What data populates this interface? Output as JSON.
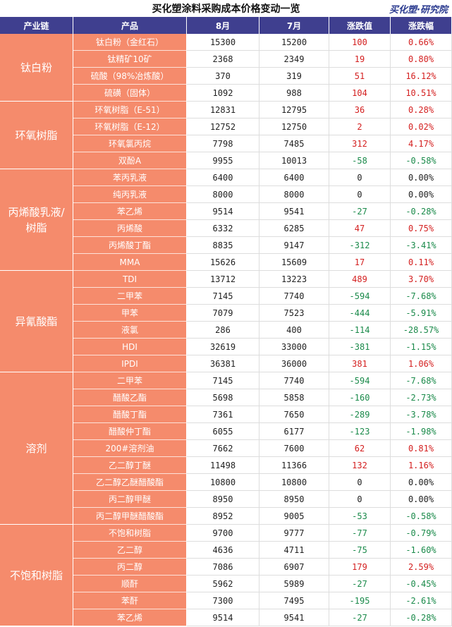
{
  "title": "买化塑涂料采购成本价格变动一览",
  "logo": "买化塑·研究院",
  "table": {
    "header": [
      "产业链",
      "产品",
      "8月",
      "7月",
      "涨跌值",
      "涨跌幅"
    ],
    "groups": [
      {
        "name": "钛白粉",
        "rows": [
          [
            "钛白粉（金红石）",
            "15300",
            "15200",
            "100",
            "0.66%"
          ],
          [
            "钛精矿10矿",
            "2368",
            "2349",
            "19",
            "0.80%"
          ],
          [
            "硫酸（98%冶炼酸）",
            "370",
            "319",
            "51",
            "16.12%"
          ],
          [
            "硫磺（固体）",
            "1092",
            "988",
            "104",
            "10.51%"
          ]
        ]
      },
      {
        "name": "环氧树脂",
        "rows": [
          [
            "环氧树脂（E-51）",
            "12831",
            "12795",
            "36",
            "0.28%"
          ],
          [
            "环氧树脂（E-12）",
            "12752",
            "12750",
            "2",
            "0.02%"
          ],
          [
            "环氧氯丙烷",
            "7798",
            "7485",
            "312",
            "4.17%"
          ],
          [
            "双酚A",
            "9955",
            "10013",
            "-58",
            "-0.58%"
          ]
        ]
      },
      {
        "name": "丙烯酸乳液/树脂",
        "rows": [
          [
            "苯丙乳液",
            "6400",
            "6400",
            "0",
            "0.00%"
          ],
          [
            "纯丙乳液",
            "8000",
            "8000",
            "0",
            "0.00%"
          ],
          [
            "苯乙烯",
            "9514",
            "9541",
            "-27",
            "-0.28%"
          ],
          [
            "丙烯酸",
            "6332",
            "6285",
            "47",
            "0.75%"
          ],
          [
            "丙烯酸丁酯",
            "8835",
            "9147",
            "-312",
            "-3.41%"
          ],
          [
            "MMA",
            "15626",
            "15609",
            "17",
            "0.11%"
          ]
        ]
      },
      {
        "name": "异氰酸酯",
        "rows": [
          [
            "TDI",
            "13712",
            "13223",
            "489",
            "3.70%"
          ],
          [
            "二甲苯",
            "7145",
            "7740",
            "-594",
            "-7.68%"
          ],
          [
            "甲苯",
            "7079",
            "7523",
            "-444",
            "-5.91%"
          ],
          [
            "液氯",
            "286",
            "400",
            "-114",
            "-28.57%"
          ],
          [
            "HDI",
            "32619",
            "33000",
            "-381",
            "-1.15%"
          ],
          [
            "IPDI",
            "36381",
            "36000",
            "381",
            "1.06%"
          ]
        ]
      },
      {
        "name": "溶剂",
        "rows": [
          [
            "二甲苯",
            "7145",
            "7740",
            "-594",
            "-7.68%"
          ],
          [
            "醋酸乙酯",
            "5698",
            "5858",
            "-160",
            "-2.73%"
          ],
          [
            "醋酸丁酯",
            "7361",
            "7650",
            "-289",
            "-3.78%"
          ],
          [
            "醋酸仲丁酯",
            "6055",
            "6177",
            "-123",
            "-1.98%"
          ],
          [
            "200#溶剂油",
            "7662",
            "7600",
            "62",
            "0.81%"
          ],
          [
            "乙二醇丁醚",
            "11498",
            "11366",
            "132",
            "1.16%"
          ],
          [
            "乙二醇乙醚醋酸酯",
            "10800",
            "10800",
            "0",
            "0.00%"
          ],
          [
            "丙二醇甲醚",
            "8950",
            "8950",
            "0",
            "0.00%"
          ],
          [
            "丙二醇甲醚醋酸酯",
            "8952",
            "9005",
            "-53",
            "-0.58%"
          ]
        ]
      },
      {
        "name": "不饱和树脂",
        "rows": [
          [
            "不饱和树脂",
            "9700",
            "9777",
            "-77",
            "-0.79%"
          ],
          [
            "乙二醇",
            "4636",
            "4711",
            "-75",
            "-1.60%"
          ],
          [
            "丙二醇",
            "7086",
            "6907",
            "179",
            "2.59%"
          ],
          [
            "顺酐",
            "5962",
            "5989",
            "-27",
            "-0.45%"
          ],
          [
            "苯酐",
            "7300",
            "7495",
            "-195",
            "-2.61%"
          ],
          [
            "苯乙烯",
            "9514",
            "9541",
            "-27",
            "-0.28%"
          ]
        ]
      }
    ]
  }
}
